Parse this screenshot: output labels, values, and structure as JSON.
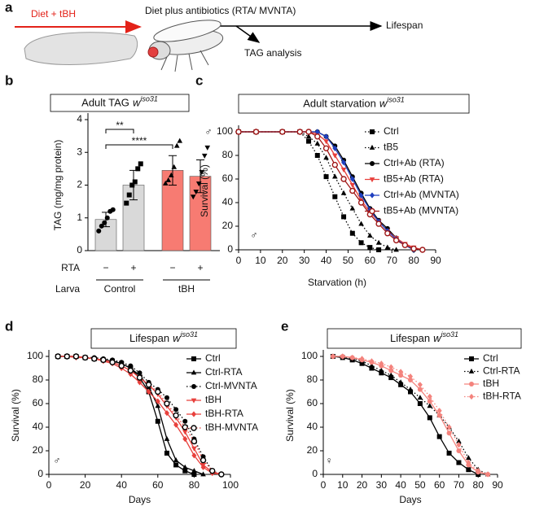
{
  "panel_labels": [
    "a",
    "b",
    "c",
    "d",
    "e"
  ],
  "schematic": {
    "treatment": "Diet + tBH",
    "adult_diet": "Diet plus antibiotics (RTA/ MVNTA)",
    "endpoint": "Lifespan",
    "analysis": "TAG analysis"
  },
  "chart_data": [
    {
      "type": "bar",
      "title": "Adult TAG",
      "title_strain": "w",
      "title_strain_sup": "iso31",
      "ylabel": "TAG (mg/mg protein)",
      "ylim": [
        0,
        4
      ],
      "yticks": [
        0,
        1,
        2,
        3,
        4
      ],
      "row_labels": [
        "RTA",
        "Larva"
      ],
      "categories": [
        "−",
        "+",
        "−",
        "+"
      ],
      "groups": [
        "Control",
        "tBH"
      ],
      "values": [
        0.95,
        2.0,
        2.45,
        2.27
      ],
      "errors": [
        0.22,
        0.45,
        0.45,
        0.5
      ],
      "colors": [
        "#d9d9d9",
        "#d9d9d9",
        "#f77b72",
        "#f77b72"
      ],
      "markers": [
        "circle",
        "square",
        "triangle-up",
        "triangle-down"
      ],
      "points": [
        [
          0.6,
          0.75,
          0.85,
          1.0,
          1.2,
          1.25
        ],
        [
          1.45,
          1.7,
          2.0,
          2.1,
          2.5,
          2.65
        ],
        [
          2.05,
          2.15,
          2.3,
          2.55,
          3.2,
          3.35
        ],
        [
          1.65,
          1.8,
          2.05,
          2.4,
          2.9,
          3.15
        ]
      ],
      "significance": [
        {
          "label": "**",
          "pair": [
            0,
            1
          ]
        },
        {
          "label": "****",
          "pair": [
            0,
            2
          ]
        }
      ],
      "sex": "♂"
    },
    {
      "type": "line",
      "title": "Adult starvation",
      "title_strain": "w",
      "title_strain_sup": "iso31",
      "xlabel": "Starvation (h)",
      "ylabel": "Survival (%)",
      "xlim": [
        0,
        90
      ],
      "xticks": [
        0,
        10,
        20,
        30,
        40,
        50,
        60,
        70,
        80,
        90
      ],
      "ylim": [
        0,
        100
      ],
      "yticks": [
        0,
        20,
        40,
        60,
        80,
        100
      ],
      "legend": "upper right",
      "sex": "♂",
      "x": [
        0,
        8,
        20,
        28,
        32,
        36,
        40,
        44,
        48,
        52,
        56,
        60,
        64,
        68,
        72,
        76,
        80,
        84
      ],
      "series": [
        {
          "name": "Ctrl",
          "color": "#000000",
          "marker": "square",
          "dash": "dotted",
          "values": [
            100,
            100,
            100,
            100,
            92,
            80,
            62,
            45,
            28,
            14,
            6,
            2,
            0,
            null,
            null,
            null,
            null,
            null
          ]
        },
        {
          "name": "tB5",
          "color": "#000000",
          "marker": "triangle-up",
          "dash": "dotted",
          "values": [
            100,
            100,
            100,
            100,
            96,
            90,
            78,
            62,
            48,
            35,
            22,
            12,
            6,
            2,
            0,
            null,
            null,
            null
          ]
        },
        {
          "name": "Ctrl+Ab (RTA)",
          "color": "#000000",
          "marker": "circle",
          "dash": "solid",
          "values": [
            100,
            100,
            100,
            100,
            100,
            100,
            96,
            88,
            76,
            62,
            48,
            35,
            25,
            18,
            10,
            4,
            0,
            null
          ]
        },
        {
          "name": "tB5+Ab (RTA)",
          "color": "#e8403c",
          "marker": "triangle-down",
          "dash": "solid",
          "values": [
            100,
            100,
            100,
            100,
            100,
            98,
            92,
            80,
            68,
            55,
            42,
            32,
            24,
            16,
            10,
            5,
            2,
            0
          ]
        },
        {
          "name": "Ctrl+Ab (MVNTA)",
          "color": "#1f3fbf",
          "marker": "diamond",
          "dash": "solid",
          "values": [
            100,
            100,
            100,
            100,
            100,
            100,
            96,
            86,
            74,
            60,
            46,
            34,
            24,
            16,
            9,
            4,
            0,
            null
          ]
        },
        {
          "name": "tB5+Ab (MVNTA)",
          "color": "#a01818",
          "marker": "circle-open",
          "dash": "solid",
          "values": [
            100,
            100,
            100,
            100,
            100,
            96,
            86,
            72,
            60,
            50,
            40,
            30,
            22,
            14,
            8,
            4,
            1,
            0
          ]
        }
      ]
    },
    {
      "type": "line",
      "title": "Lifespan",
      "title_strain": "w",
      "title_strain_sup": "iso31",
      "xlabel": "Days",
      "ylabel": "Survival (%)",
      "xlim": [
        0,
        100
      ],
      "xticks": [
        0,
        20,
        40,
        60,
        80,
        100
      ],
      "ylim": [
        0,
        100
      ],
      "yticks": [
        0,
        20,
        40,
        60,
        80,
        100
      ],
      "legend": "upper right",
      "sex": "♂",
      "x": [
        5,
        10,
        15,
        20,
        25,
        30,
        35,
        40,
        45,
        50,
        55,
        60,
        65,
        70,
        75,
        80,
        85,
        90,
        95
      ],
      "series": [
        {
          "name": "Ctrl",
          "color": "#000000",
          "marker": "square",
          "dash": "solid",
          "values": [
            100,
            100,
            100,
            99,
            98,
            97,
            96,
            94,
            90,
            82,
            70,
            45,
            18,
            8,
            3,
            0,
            null,
            null,
            null
          ]
        },
        {
          "name": "Ctrl-RTA",
          "color": "#000000",
          "marker": "triangle-up",
          "dash": "solid",
          "values": [
            100,
            100,
            100,
            99,
            98,
            97,
            96,
            94,
            90,
            84,
            74,
            58,
            30,
            12,
            6,
            3,
            0,
            null,
            null
          ]
        },
        {
          "name": "Ctrl-MVNTA",
          "color": "#000000",
          "marker": "circle",
          "dash": "dotted",
          "values": [
            100,
            100,
            100,
            99,
            99,
            98,
            97,
            95,
            92,
            86,
            78,
            72,
            65,
            55,
            45,
            30,
            15,
            3,
            0
          ]
        },
        {
          "name": "tBH",
          "color": "#e8403c",
          "marker": "triangle-down",
          "dash": "solid",
          "values": [
            100,
            100,
            100,
            99,
            98,
            97,
            95,
            92,
            88,
            82,
            76,
            68,
            58,
            48,
            36,
            22,
            8,
            2,
            0
          ]
        },
        {
          "name": "tBH-RTA",
          "color": "#e8403c",
          "marker": "diamond",
          "dash": "solid",
          "values": [
            100,
            100,
            99,
            99,
            98,
            96,
            94,
            90,
            85,
            78,
            70,
            62,
            52,
            42,
            30,
            16,
            6,
            1,
            0
          ]
        },
        {
          "name": "tBH-MVNTA",
          "color": "#e8403c",
          "marker_color": "#000000",
          "marker": "circle-open",
          "dash": "dotted",
          "values": [
            100,
            100,
            100,
            99,
            98,
            97,
            95,
            92,
            88,
            82,
            76,
            70,
            60,
            50,
            40,
            28,
            12,
            3,
            0
          ]
        }
      ]
    },
    {
      "type": "line",
      "title": "Lifespan",
      "title_strain": "w",
      "title_strain_sup": "iso31",
      "xlabel": "Days",
      "ylabel": "Survival (%)",
      "xlim": [
        0,
        90
      ],
      "xticks": [
        0,
        10,
        20,
        30,
        40,
        50,
        60,
        70,
        80,
        90
      ],
      "ylim": [
        0,
        100
      ],
      "yticks": [
        0,
        20,
        40,
        60,
        80,
        100
      ],
      "legend": "upper right",
      "sex": "♀",
      "x": [
        5,
        10,
        15,
        20,
        25,
        30,
        35,
        40,
        45,
        50,
        55,
        60,
        65,
        70,
        75,
        80,
        85
      ],
      "series": [
        {
          "name": "Ctrl",
          "color": "#000000",
          "marker": "square",
          "dash": "solid",
          "values": [
            100,
            99,
            97,
            94,
            90,
            86,
            82,
            76,
            70,
            60,
            48,
            32,
            18,
            10,
            4,
            0,
            null
          ]
        },
        {
          "name": "Ctrl-RTA",
          "color": "#000000",
          "marker": "triangle-up",
          "dash": "dotted",
          "values": [
            100,
            100,
            98,
            96,
            92,
            88,
            84,
            78,
            72,
            65,
            58,
            50,
            40,
            28,
            14,
            4,
            0
          ]
        },
        {
          "name": "tBH",
          "color": "#f4837d",
          "marker": "circle",
          "dash": "solid",
          "values": [
            100,
            100,
            99,
            97,
            95,
            92,
            88,
            84,
            80,
            72,
            62,
            50,
            35,
            20,
            8,
            2,
            0
          ]
        },
        {
          "name": "tBH-RTA",
          "color": "#f4837d",
          "marker": "diamond",
          "dash": "dotted",
          "values": [
            100,
            100,
            99,
            98,
            96,
            94,
            91,
            87,
            83,
            76,
            66,
            54,
            40,
            25,
            10,
            3,
            0
          ]
        }
      ]
    }
  ]
}
